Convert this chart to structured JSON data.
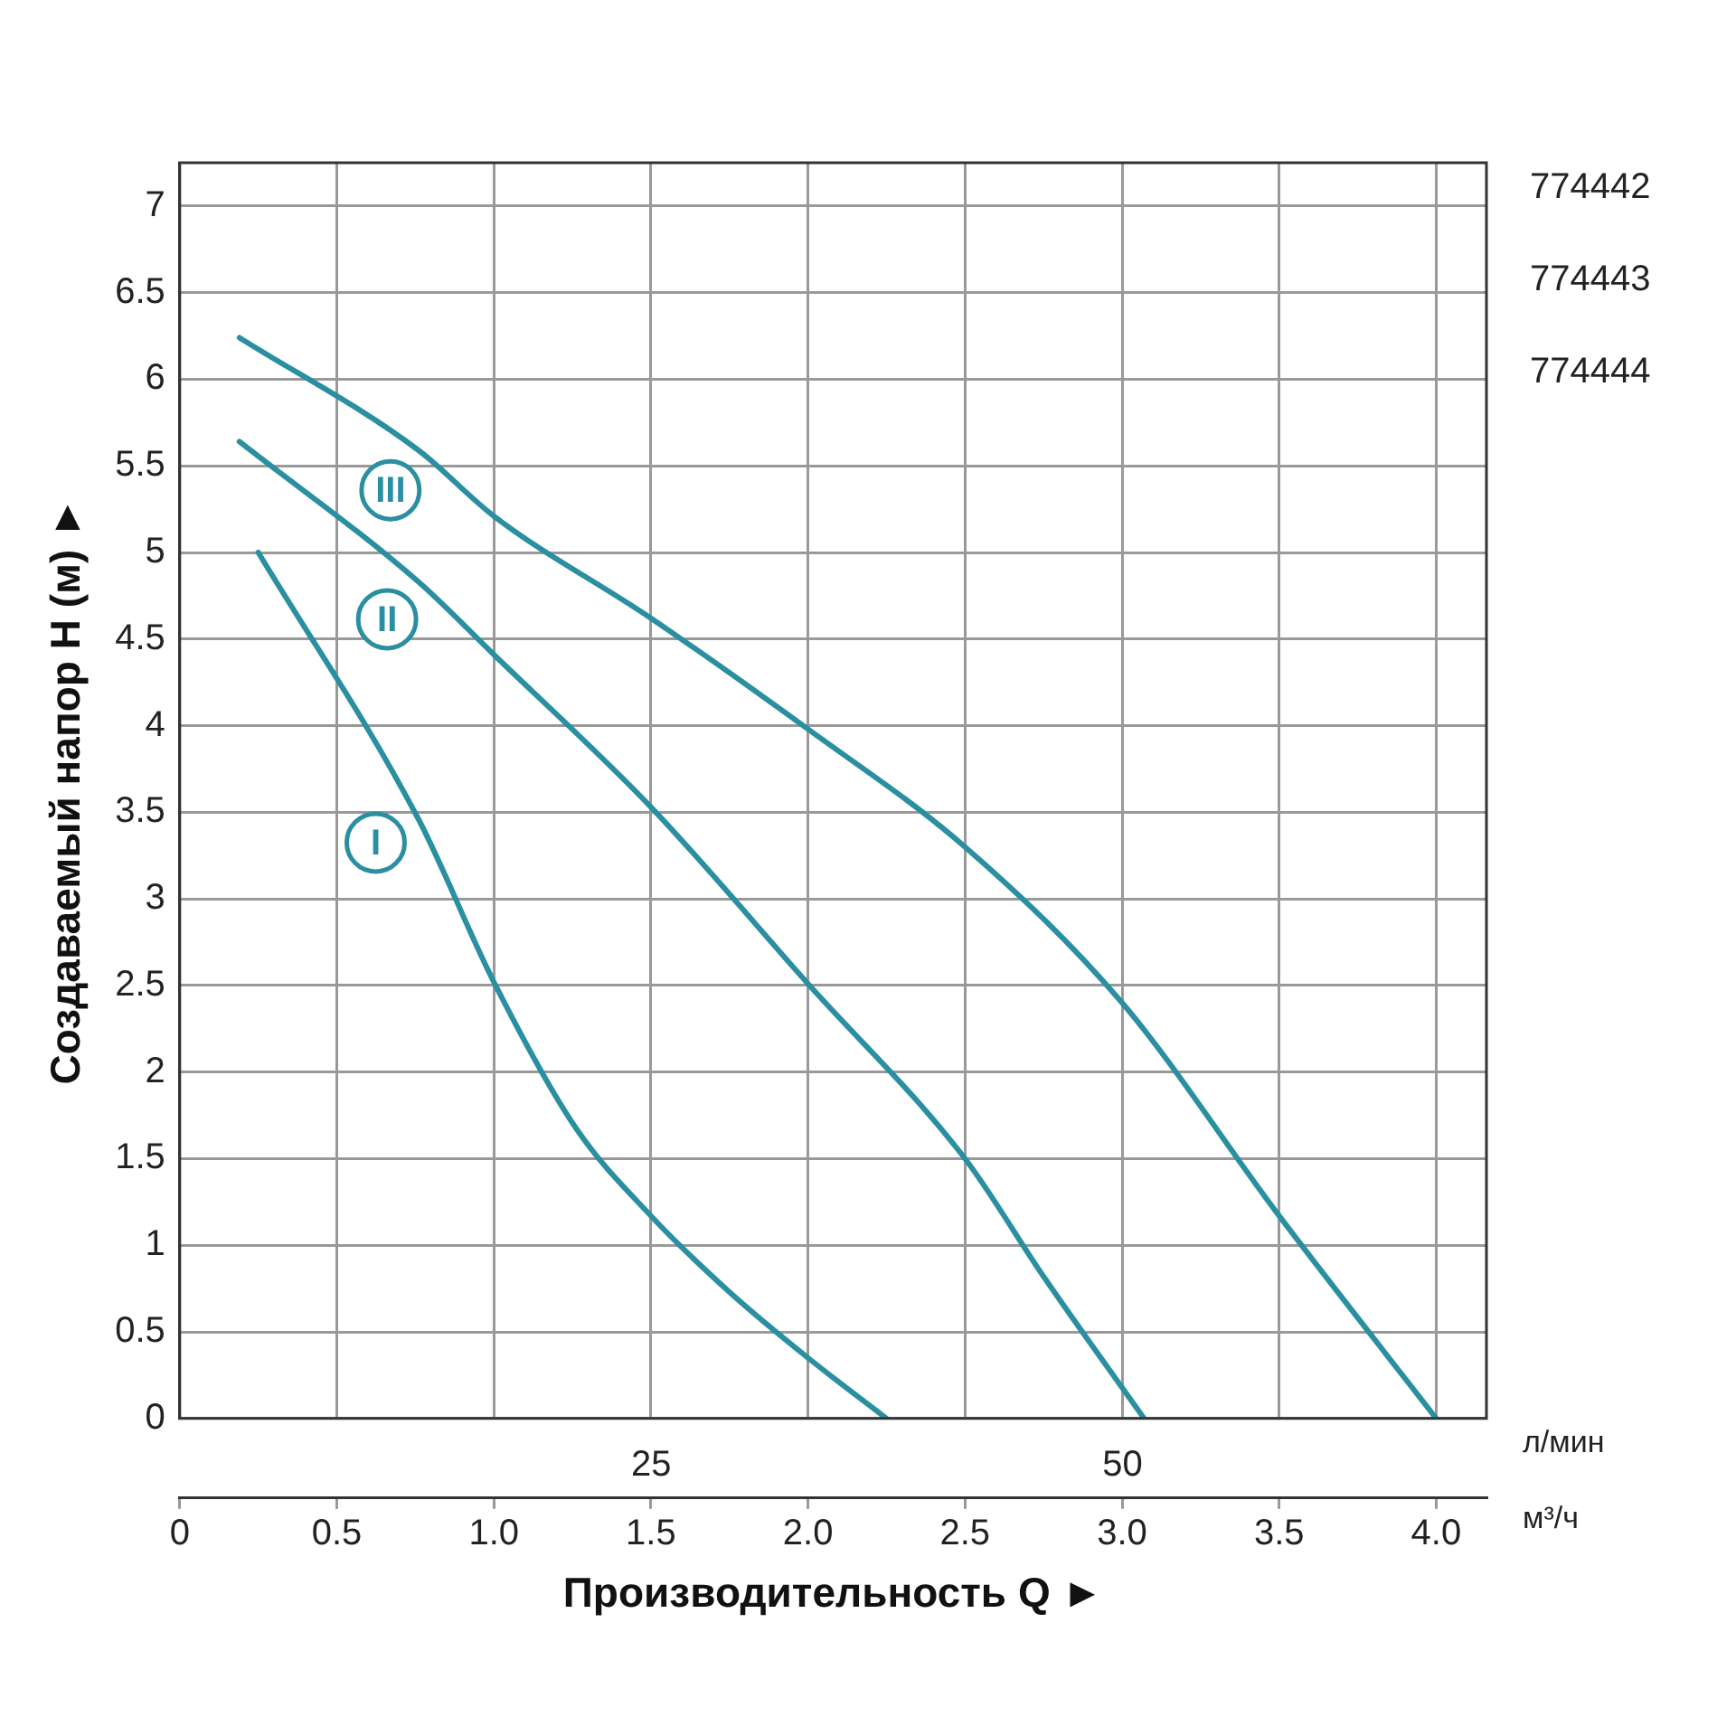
{
  "chart_data": {
    "type": "line",
    "xlabel": "Производительность Q ►",
    "ylabel": "Создаваемый напор Н (м) ►",
    "x2label": "л/мин",
    "annotations": [
      "774442",
      "774443",
      "774444",
      "м³/ч"
    ],
    "xlim": [
      0,
      4.16
    ],
    "xticks": [
      0,
      0.5,
      {
        "value": 1,
        "label": "1.0"
      },
      1.5,
      {
        "value": 2,
        "label": "2.0"
      },
      2.5,
      {
        "value": 3,
        "label": "3.0"
      },
      3.5,
      {
        "value": 4,
        "label": "4.0"
      }
    ],
    "x2lim": [
      0,
      69.3
    ],
    "x2ticks": [
      25,
      50
    ],
    "ylim": [
      0,
      7.25
    ],
    "yticks": [
      0,
      0.5,
      1,
      1.5,
      2,
      2.5,
      3,
      3.5,
      4,
      4.5,
      5,
      5.5,
      6,
      6.5,
      7
    ],
    "grid": true,
    "legend": false,
    "marker": "none",
    "line_style": "solid",
    "series": [
      {
        "name": "I",
        "color": "#2a8fa0",
        "x": [
          0.25,
          0.76,
          1.0,
          1.26,
          1.5,
          1.75,
          2.0,
          2.25
        ],
        "values": [
          5.0,
          3.46,
          2.52,
          1.68,
          1.17,
          0.73,
          0.35,
          0
        ]
      },
      {
        "name": "II",
        "color": "#2a8fa0",
        "x": [
          0.19,
          0.76,
          1.0,
          1.5,
          2.0,
          2.5,
          2.75,
          3.07
        ],
        "values": [
          5.64,
          4.83,
          4.41,
          3.53,
          2.51,
          1.5,
          0.82,
          0
        ]
      },
      {
        "name": "III",
        "color": "#2a8fa0",
        "x": [
          0.19,
          0.76,
          1.0,
          1.5,
          2.0,
          2.5,
          3.0,
          3.5,
          4.0
        ],
        "values": [
          6.24,
          5.59,
          5.21,
          4.62,
          3.98,
          3.3,
          2.4,
          1.17,
          0
        ]
      }
    ]
  }
}
